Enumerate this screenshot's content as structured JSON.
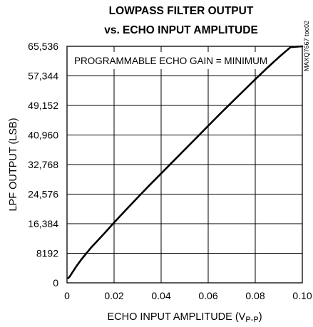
{
  "chart_data": {
    "type": "line",
    "title_lines": [
      "LOWPASS FILTER OUTPUT",
      "vs. ECHO INPUT AMPLITUDE"
    ],
    "xlabel_main": "ECHO INPUT AMPLITUDE (V",
    "xlabel_sub": "P-P",
    "xlabel_close": ")",
    "ylabel": "LPF OUTPUT (LSB)",
    "annotation": "PROGRAMMABLE ECHO GAIN = MINIMUM",
    "doc_id": "MAXQ7667 toc02",
    "xlim": [
      0,
      0.1
    ],
    "ylim": [
      0,
      65536
    ],
    "x_ticks": [
      0,
      0.02,
      0.04,
      0.06,
      0.08,
      0.1
    ],
    "x_tick_labels": [
      "0",
      "0.02",
      "0.04",
      "0.06",
      "0.08",
      "0.10"
    ],
    "y_ticks": [
      0,
      8192,
      16384,
      24576,
      32768,
      40960,
      49152,
      57344,
      65536
    ],
    "y_tick_labels": [
      "0",
      "8192",
      "16,384",
      "24,576",
      "32,768",
      "40,960",
      "49,152",
      "57,344",
      "65,536"
    ],
    "grid": true,
    "series": [
      {
        "x": [
          0.0005,
          0.0012,
          0.002,
          0.004,
          0.006,
          0.008,
          0.01,
          0.013,
          0.016,
          0.02,
          0.025,
          0.03,
          0.035,
          0.04,
          0.045,
          0.05,
          0.055,
          0.06,
          0.065,
          0.07,
          0.075,
          0.08,
          0.085,
          0.09,
          0.095,
          0.1
        ],
        "y": [
          1300,
          1800,
          2600,
          4600,
          6400,
          8000,
          9600,
          11700,
          13800,
          16700,
          20200,
          23600,
          27000,
          30300,
          33600,
          36900,
          40200,
          43500,
          46800,
          50000,
          53200,
          56400,
          59500,
          62500,
          65300,
          65536
        ]
      }
    ]
  }
}
